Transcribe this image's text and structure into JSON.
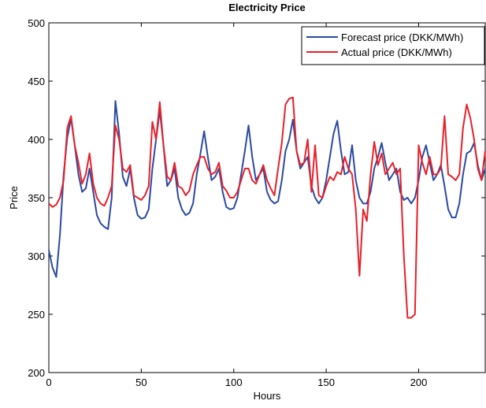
{
  "chart_data": {
    "type": "line",
    "title": "Electricity Price",
    "xlabel": "Hours",
    "ylabel": "Price",
    "x": [
      0,
      2,
      4,
      6,
      8,
      10,
      12,
      14,
      16,
      18,
      20,
      22,
      24,
      26,
      28,
      30,
      32,
      34,
      36,
      38,
      40,
      42,
      44,
      46,
      48,
      50,
      52,
      54,
      56,
      58,
      60,
      62,
      64,
      66,
      68,
      70,
      72,
      74,
      76,
      78,
      80,
      82,
      84,
      86,
      88,
      90,
      92,
      94,
      96,
      98,
      100,
      102,
      104,
      106,
      108,
      110,
      112,
      114,
      116,
      118,
      120,
      122,
      124,
      126,
      128,
      130,
      132,
      134,
      136,
      138,
      140,
      142,
      144,
      146,
      148,
      150,
      152,
      154,
      156,
      158,
      160,
      162,
      164,
      166,
      168,
      170,
      172,
      174,
      176,
      178,
      180,
      182,
      184,
      186,
      188,
      190,
      192,
      194,
      196,
      198,
      200,
      202,
      204,
      206,
      208,
      210,
      212,
      214,
      216,
      218,
      220,
      222,
      224,
      226,
      228,
      230,
      232,
      234,
      236
    ],
    "series": [
      {
        "name": "Forecast price (DKK/MWh)",
        "color": "#2b4aa0",
        "values": [
          305,
          290,
          282,
          318,
          370,
          402,
          418,
          395,
          370,
          355,
          358,
          375,
          355,
          335,
          328,
          325,
          323,
          350,
          433,
          405,
          368,
          360,
          375,
          350,
          335,
          332,
          333,
          340,
          375,
          400,
          425,
          395,
          360,
          365,
          375,
          350,
          340,
          335,
          337,
          345,
          370,
          388,
          407,
          385,
          365,
          368,
          375,
          355,
          342,
          340,
          341,
          350,
          370,
          390,
          412,
          385,
          365,
          370,
          375,
          355,
          348,
          345,
          347,
          365,
          390,
          400,
          417,
          390,
          375,
          380,
          385,
          360,
          350,
          345,
          350,
          365,
          385,
          405,
          416,
          390,
          370,
          372,
          395,
          365,
          350,
          345,
          345,
          355,
          375,
          385,
          397,
          380,
          365,
          370,
          375,
          355,
          348,
          350,
          345,
          350,
          365,
          385,
          395,
          380,
          365,
          370,
          378,
          360,
          340,
          333,
          333,
          345,
          370,
          388,
          390,
          397,
          378,
          365,
          375
        ]
      },
      {
        "name": "Actual price (DKK/MWh)",
        "color": "#e8202a",
        "values": [
          345,
          342,
          344,
          350,
          365,
          410,
          420,
          395,
          380,
          362,
          370,
          388,
          362,
          350,
          345,
          343,
          350,
          360,
          412,
          400,
          375,
          372,
          378,
          352,
          350,
          348,
          352,
          360,
          415,
          400,
          432,
          395,
          368,
          365,
          380,
          360,
          358,
          352,
          356,
          370,
          378,
          385,
          385,
          375,
          370,
          372,
          380,
          360,
          356,
          350,
          350,
          355,
          365,
          375,
          375,
          365,
          362,
          370,
          378,
          365,
          358,
          352,
          375,
          397,
          430,
          435,
          436,
          390,
          378,
          380,
          400,
          355,
          395,
          352,
          350,
          360,
          368,
          365,
          372,
          370,
          385,
          375,
          370,
          340,
          283,
          340,
          330,
          370,
          398,
          378,
          388,
          370,
          375,
          380,
          370,
          375,
          300,
          247,
          247,
          250,
          395,
          380,
          370,
          385,
          370,
          370,
          375,
          420,
          370,
          368,
          365,
          370,
          410,
          430,
          418,
          400,
          375,
          365,
          390
        ]
      }
    ],
    "xlim": [
      0,
      236
    ],
    "ylim": [
      200,
      500
    ],
    "xticks": [
      0,
      50,
      100,
      150,
      200
    ],
    "yticks": [
      200,
      250,
      300,
      350,
      400,
      450,
      500
    ],
    "legend": "upper right"
  }
}
